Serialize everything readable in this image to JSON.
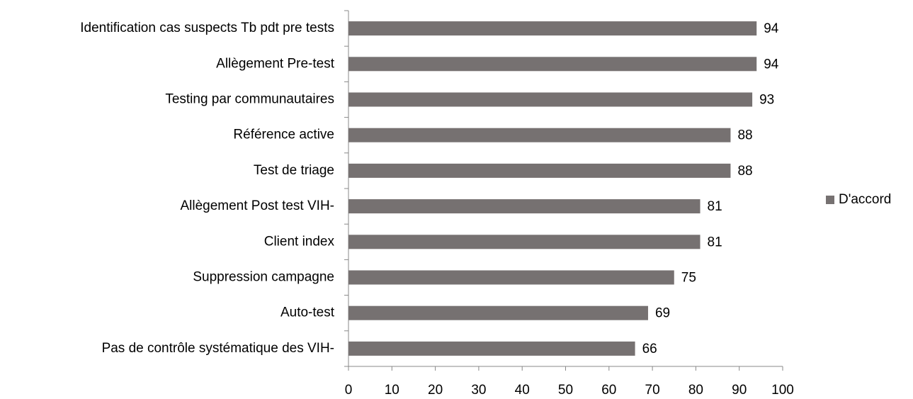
{
  "chart_data": {
    "type": "bar",
    "orientation": "horizontal",
    "categories": [
      "Identification cas suspects Tb pdt pre tests",
      "Allègement Pre-test",
      "Testing par communautaires",
      "Référence active",
      "Test de triage",
      "Allègement Post test VIH-",
      "Client index",
      "Suppression campagne",
      "Auto-test",
      "Pas de contrôle systématique des VIH-"
    ],
    "series": [
      {
        "name": "D'accord",
        "color": "#767171",
        "values": [
          94,
          94,
          93,
          88,
          88,
          81,
          81,
          75,
          69,
          66
        ]
      }
    ],
    "xlim": [
      0,
      100
    ],
    "xticks": [
      0,
      10,
      20,
      30,
      40,
      50,
      60,
      70,
      80,
      90,
      100
    ],
    "grid": false,
    "legend": "right"
  }
}
